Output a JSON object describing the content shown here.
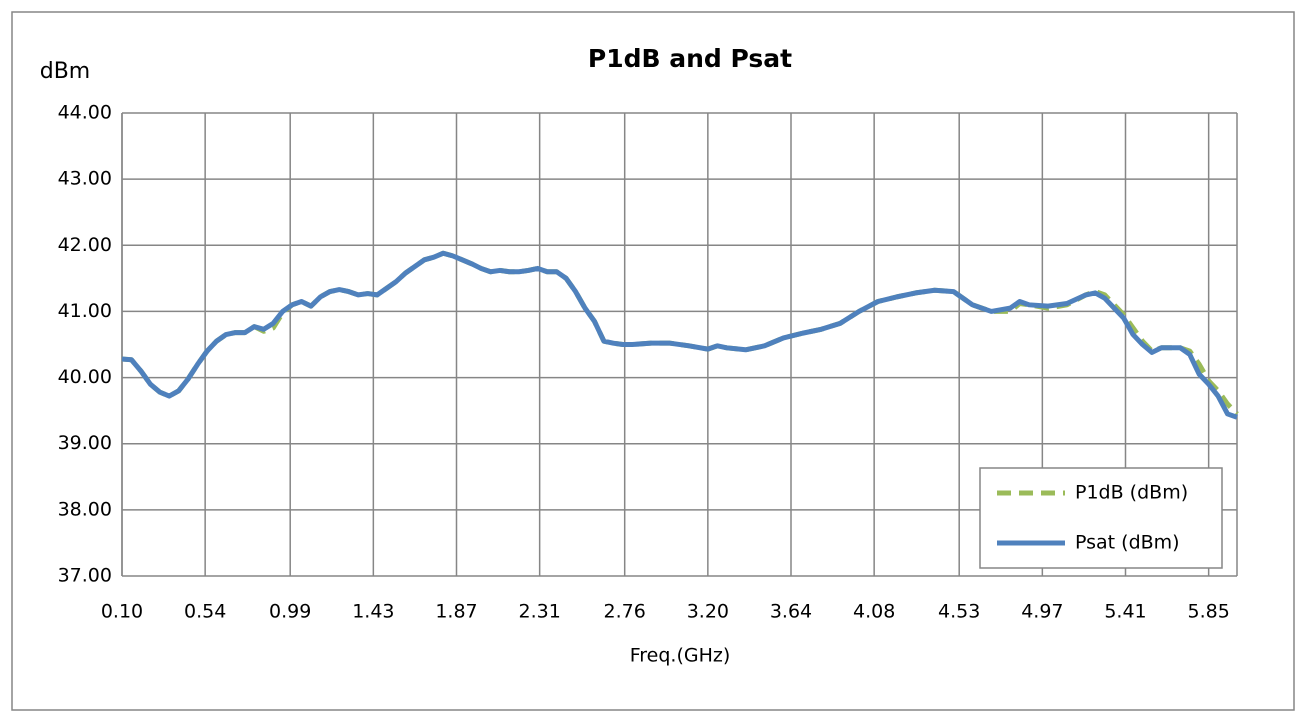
{
  "chart_data": {
    "type": "line",
    "title": "P1dB and Psat",
    "y_label": "dBm",
    "x_label": "Freq.(GHz)",
    "x": [
      0.1,
      0.15,
      0.2,
      0.25,
      0.3,
      0.35,
      0.4,
      0.45,
      0.5,
      0.55,
      0.6,
      0.65,
      0.7,
      0.75,
      0.8,
      0.85,
      0.9,
      0.95,
      1.0,
      1.05,
      1.1,
      1.15,
      1.2,
      1.25,
      1.3,
      1.35,
      1.4,
      1.45,
      1.5,
      1.55,
      1.6,
      1.65,
      1.7,
      1.75,
      1.8,
      1.85,
      1.9,
      1.95,
      2.0,
      2.05,
      2.1,
      2.15,
      2.2,
      2.25,
      2.3,
      2.35,
      2.4,
      2.45,
      2.5,
      2.55,
      2.6,
      2.65,
      2.7,
      2.75,
      2.8,
      2.9,
      3.0,
      3.1,
      3.2,
      3.25,
      3.3,
      3.4,
      3.5,
      3.6,
      3.7,
      3.8,
      3.9,
      4.0,
      4.1,
      4.2,
      4.3,
      4.4,
      4.5,
      4.6,
      4.7,
      4.8,
      4.85,
      4.9,
      5.0,
      5.1,
      5.2,
      5.25,
      5.3,
      5.35,
      5.4,
      5.45,
      5.5,
      5.55,
      5.6,
      5.65,
      5.7,
      5.75,
      5.8,
      5.85,
      5.9,
      5.95,
      6.0
    ],
    "series": [
      {
        "name": "P1dB (dBm)",
        "color": "#9bbb59",
        "style": "dashed",
        "values": [
          40.28,
          40.27,
          40.1,
          39.9,
          39.78,
          39.72,
          39.8,
          39.98,
          40.2,
          40.4,
          40.55,
          40.65,
          40.68,
          40.68,
          40.77,
          40.7,
          40.75,
          40.98,
          41.1,
          41.15,
          41.08,
          41.22,
          41.3,
          41.33,
          41.3,
          41.25,
          41.27,
          41.25,
          41.35,
          41.45,
          41.58,
          41.68,
          41.78,
          41.82,
          41.88,
          41.84,
          41.78,
          41.72,
          41.65,
          41.6,
          41.62,
          41.6,
          41.6,
          41.62,
          41.65,
          41.6,
          41.6,
          41.5,
          41.3,
          41.05,
          40.85,
          40.55,
          40.52,
          40.5,
          40.5,
          40.52,
          40.52,
          40.48,
          40.43,
          40.48,
          40.45,
          40.42,
          40.48,
          40.6,
          40.67,
          40.73,
          40.82,
          41.0,
          41.15,
          41.22,
          41.28,
          41.32,
          41.3,
          41.1,
          41.0,
          41.0,
          41.12,
          41.1,
          41.05,
          41.1,
          41.25,
          41.3,
          41.25,
          41.1,
          40.95,
          40.75,
          40.55,
          40.4,
          40.45,
          40.45,
          40.45,
          40.4,
          40.2,
          39.95,
          39.8,
          39.6,
          39.45
        ]
      },
      {
        "name": "Psat (dBm)",
        "color": "#4f81bd",
        "style": "solid",
        "values": [
          40.28,
          40.27,
          40.1,
          39.9,
          39.78,
          39.72,
          39.8,
          39.98,
          40.2,
          40.4,
          40.55,
          40.65,
          40.68,
          40.68,
          40.77,
          40.73,
          40.82,
          41.0,
          41.1,
          41.15,
          41.08,
          41.22,
          41.3,
          41.33,
          41.3,
          41.25,
          41.27,
          41.25,
          41.35,
          41.45,
          41.58,
          41.68,
          41.78,
          41.82,
          41.88,
          41.84,
          41.78,
          41.72,
          41.65,
          41.6,
          41.62,
          41.6,
          41.6,
          41.62,
          41.65,
          41.6,
          41.6,
          41.5,
          41.3,
          41.05,
          40.85,
          40.55,
          40.52,
          40.5,
          40.5,
          40.52,
          40.52,
          40.48,
          40.43,
          40.48,
          40.45,
          40.42,
          40.48,
          40.6,
          40.67,
          40.73,
          40.82,
          41.0,
          41.15,
          41.22,
          41.28,
          41.32,
          41.3,
          41.1,
          41.0,
          41.05,
          41.15,
          41.1,
          41.08,
          41.12,
          41.25,
          41.28,
          41.2,
          41.05,
          40.9,
          40.65,
          40.5,
          40.38,
          40.45,
          40.45,
          40.45,
          40.35,
          40.05,
          39.9,
          39.72,
          39.45,
          39.4
        ]
      }
    ],
    "xlim": [
      0.1,
      6.0
    ],
    "xticks": [
      {
        "value": 0.1,
        "label": "0.10"
      },
      {
        "value": 0.54,
        "label": "0.54"
      },
      {
        "value": 0.99,
        "label": "0.99"
      },
      {
        "value": 1.43,
        "label": "1.43"
      },
      {
        "value": 1.87,
        "label": "1.87"
      },
      {
        "value": 2.31,
        "label": "2.31"
      },
      {
        "value": 2.76,
        "label": "2.76"
      },
      {
        "value": 3.2,
        "label": "3.20"
      },
      {
        "value": 3.64,
        "label": "3.64"
      },
      {
        "value": 4.08,
        "label": "4.08"
      },
      {
        "value": 4.53,
        "label": "4.53"
      },
      {
        "value": 4.97,
        "label": "4.97"
      },
      {
        "value": 5.41,
        "label": "5.41"
      },
      {
        "value": 5.85,
        "label": "5.85"
      }
    ],
    "ylim": [
      37,
      44
    ],
    "yticks": [
      {
        "value": 37,
        "label": "37.00"
      },
      {
        "value": 38,
        "label": "38.00"
      },
      {
        "value": 39,
        "label": "39.00"
      },
      {
        "value": 40,
        "label": "40.00"
      },
      {
        "value": 41,
        "label": "41.00"
      },
      {
        "value": 42,
        "label": "42.00"
      },
      {
        "value": 43,
        "label": "43.00"
      },
      {
        "value": 44,
        "label": "44.00"
      }
    ],
    "grid": true,
    "legend": "lower right"
  }
}
